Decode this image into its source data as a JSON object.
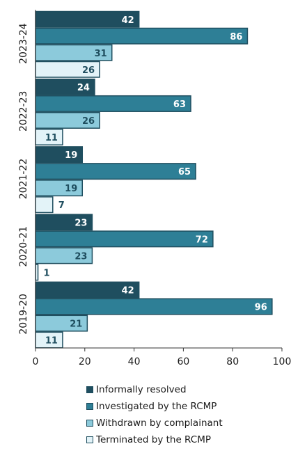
{
  "chart_data": {
    "type": "bar",
    "orientation": "horizontal",
    "categories": [
      "2023-24",
      "2022-23",
      "2021-22",
      "2020-21",
      "2019-20"
    ],
    "series": [
      {
        "name": "Informally resolved",
        "values": [
          42,
          24,
          19,
          23,
          42
        ],
        "color": "#1f4e5f",
        "label_color": "#ffffff"
      },
      {
        "name": "Investigated by the RCMP",
        "values": [
          86,
          63,
          65,
          72,
          96
        ],
        "color": "#2e7f96",
        "label_color": "#ffffff"
      },
      {
        "name": "Withdrawn by complainant",
        "values": [
          31,
          26,
          19,
          23,
          21
        ],
        "color": "#8ccadb",
        "label_color": "#1f4e5f"
      },
      {
        "name": "Terminated by the RCMP",
        "values": [
          26,
          11,
          7,
          1,
          11
        ],
        "color": "#e3f3f8",
        "label_color": "#1f4e5f"
      }
    ],
    "xlim": [
      0,
      100
    ],
    "x_ticks": [
      0,
      20,
      40,
      60,
      80,
      100
    ],
    "grid": false,
    "legend_position": "bottom",
    "bar_border_color": "#1f4e5f"
  }
}
